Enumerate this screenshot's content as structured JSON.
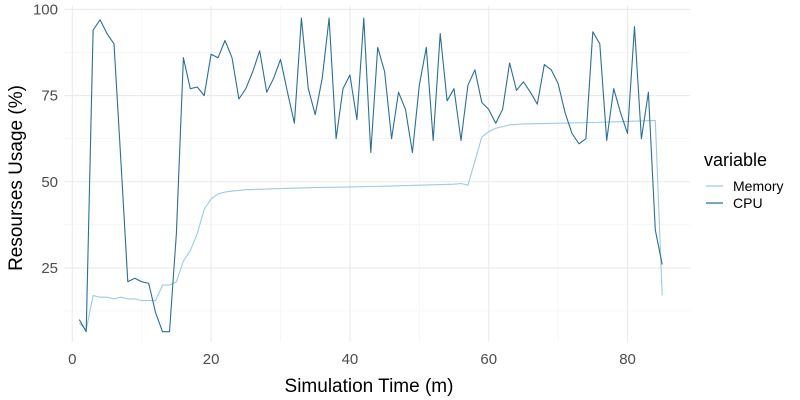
{
  "chart_data": {
    "type": "line",
    "title": "",
    "xlabel": "Simulation Time (m)",
    "ylabel": "Resourses Usage (%)",
    "xlim": [
      -1.2,
      89
    ],
    "ylim": [
      3.5,
      101
    ],
    "x_ticks": [
      0,
      20,
      40,
      60,
      80
    ],
    "y_ticks": [
      25,
      50,
      75,
      100
    ],
    "x_minor": [
      10,
      30,
      50,
      70
    ],
    "y_minor": [
      12.5,
      37.5,
      62.5,
      87.5
    ],
    "grid": true,
    "legend": {
      "title": "variable",
      "position": "right"
    },
    "series": [
      {
        "name": "Memory",
        "color": "#9ecae1",
        "x": [
          1,
          2,
          3,
          4,
          5,
          6,
          7,
          8,
          9,
          10,
          11,
          12,
          13,
          14,
          15,
          16,
          17,
          18,
          19,
          20,
          21,
          22,
          23,
          24,
          25,
          30,
          35,
          40,
          45,
          50,
          55,
          56,
          57,
          58,
          59,
          60,
          61,
          62,
          63,
          65,
          70,
          75,
          80,
          84,
          85
        ],
        "y": [
          9,
          7,
          17,
          16.5,
          16.5,
          16,
          16.5,
          16,
          16,
          15.5,
          15.5,
          15.5,
          20,
          20,
          21,
          27,
          30,
          35,
          42,
          45,
          46.5,
          47,
          47.3,
          47.5,
          47.7,
          48,
          48.3,
          48.5,
          48.7,
          49,
          49.3,
          49.5,
          49,
          56,
          63,
          64.5,
          65.5,
          66,
          66.5,
          66.8,
          67,
          67.2,
          67.5,
          67.8,
          17
        ]
      },
      {
        "name": "CPU",
        "color": "#2b6f96",
        "x": [
          1,
          2,
          3,
          4,
          5,
          6,
          7,
          8,
          9,
          10,
          11,
          12,
          13,
          14,
          15,
          16,
          17,
          18,
          19,
          20,
          21,
          22,
          23,
          24,
          25,
          26,
          27,
          28,
          29,
          30,
          31,
          32,
          33,
          34,
          35,
          36,
          37,
          38,
          39,
          40,
          41,
          42,
          43,
          44,
          45,
          46,
          47,
          48,
          49,
          50,
          51,
          52,
          53,
          54,
          55,
          56,
          57,
          58,
          59,
          60,
          61,
          62,
          63,
          64,
          65,
          66,
          67,
          68,
          69,
          70,
          71,
          72,
          73,
          74,
          75,
          76,
          77,
          78,
          79,
          80,
          81,
          82,
          83,
          84,
          85
        ],
        "y": [
          10,
          6.5,
          94,
          97,
          93,
          90,
          56,
          21,
          22,
          21,
          20.5,
          12,
          6.5,
          6.5,
          35,
          86,
          77,
          77.5,
          75,
          87,
          86,
          91,
          86,
          74,
          77,
          82,
          88,
          76,
          80,
          85.5,
          76,
          67,
          97.5,
          77,
          69.5,
          80,
          97.5,
          62.5,
          77,
          81,
          68,
          97.5,
          58.5,
          89,
          82,
          62.5,
          76,
          71,
          58.5,
          78,
          89,
          62,
          93,
          73.5,
          77,
          62,
          78,
          82.5,
          73,
          71,
          67,
          71,
          84.5,
          76.5,
          79,
          76,
          72.5,
          84,
          82.5,
          78.5,
          70,
          64,
          61,
          62.5,
          93.5,
          90,
          62,
          77,
          70,
          64,
          95,
          62.5,
          76,
          36,
          26
        ]
      }
    ]
  }
}
